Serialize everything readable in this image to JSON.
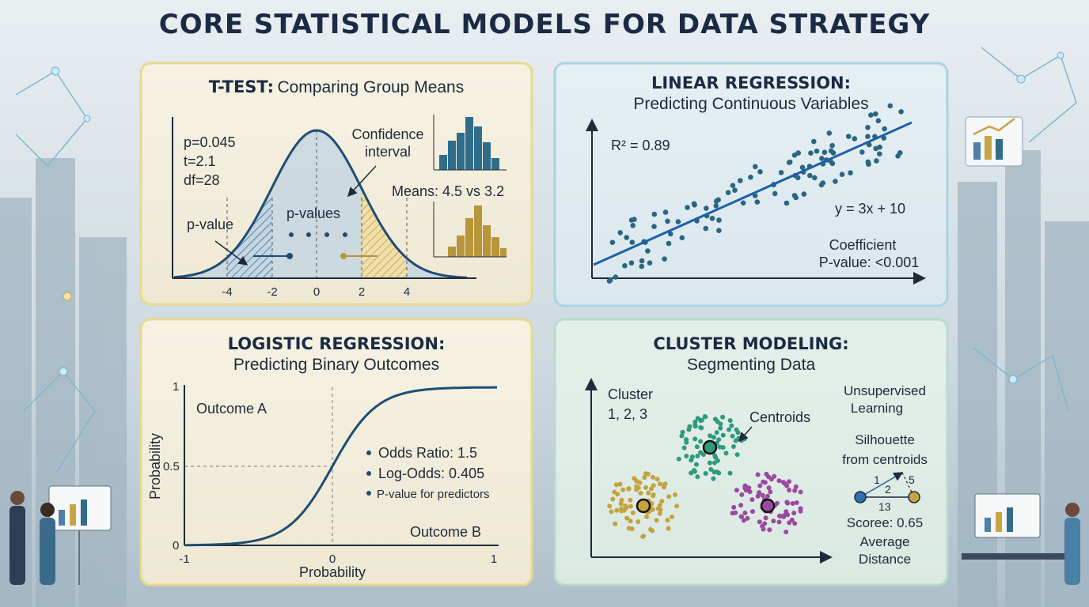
{
  "title": "CORE STATISTICAL MODELS FOR DATA STRATEGY",
  "ttest": {
    "title": "T-TEST:",
    "subtitle": "Comparing Group Means",
    "stats": [
      "p=0.045",
      "t=2.1",
      "df=28"
    ],
    "confidence": [
      "Confidence",
      "interval"
    ],
    "means": "Means: 4.5 vs 3.2",
    "p_value": "p-value",
    "p_values": "p-values",
    "xticks": [
      "-4",
      "-2",
      "0",
      "2",
      "4"
    ]
  },
  "linreg": {
    "title": "LINEAR REGRESSION:",
    "subtitle": "Predicting Continuous Variables",
    "r2": "R² = 0.89",
    "equation": "y = 3x + 10",
    "coefficient": [
      "Coefficient",
      "P-value: <0.001"
    ]
  },
  "logreg": {
    "title": "LOGISTIC REGRESSION:",
    "subtitle": "Predicting Binary Outcomes",
    "outcome_a": "Outcome A",
    "outcome_b": "Outcome B",
    "y_label": "Probability",
    "x_label": "Probability",
    "yticks": [
      "1",
      "0.5",
      "0"
    ],
    "xticks": [
      "-1",
      "0",
      "1"
    ],
    "bullets": [
      "Odds Ratio: 1.5",
      "Log-Odds: 0.405",
      "P-value for predictors"
    ]
  },
  "cluster": {
    "title": "CLUSTER MODELING:",
    "subtitle": "Segmenting Data",
    "cluster_label": [
      "Cluster",
      "1, 2, 3"
    ],
    "centroids": "Centroids",
    "learning": [
      "Unsupervised",
      "Learning"
    ],
    "silhouette": [
      "Silhouette",
      "from centroids"
    ],
    "diagram_numbers": [
      "1",
      "2",
      "5",
      "13"
    ],
    "score": "Scoree: 0.65",
    "distance": [
      "Average",
      "Distance"
    ]
  }
}
